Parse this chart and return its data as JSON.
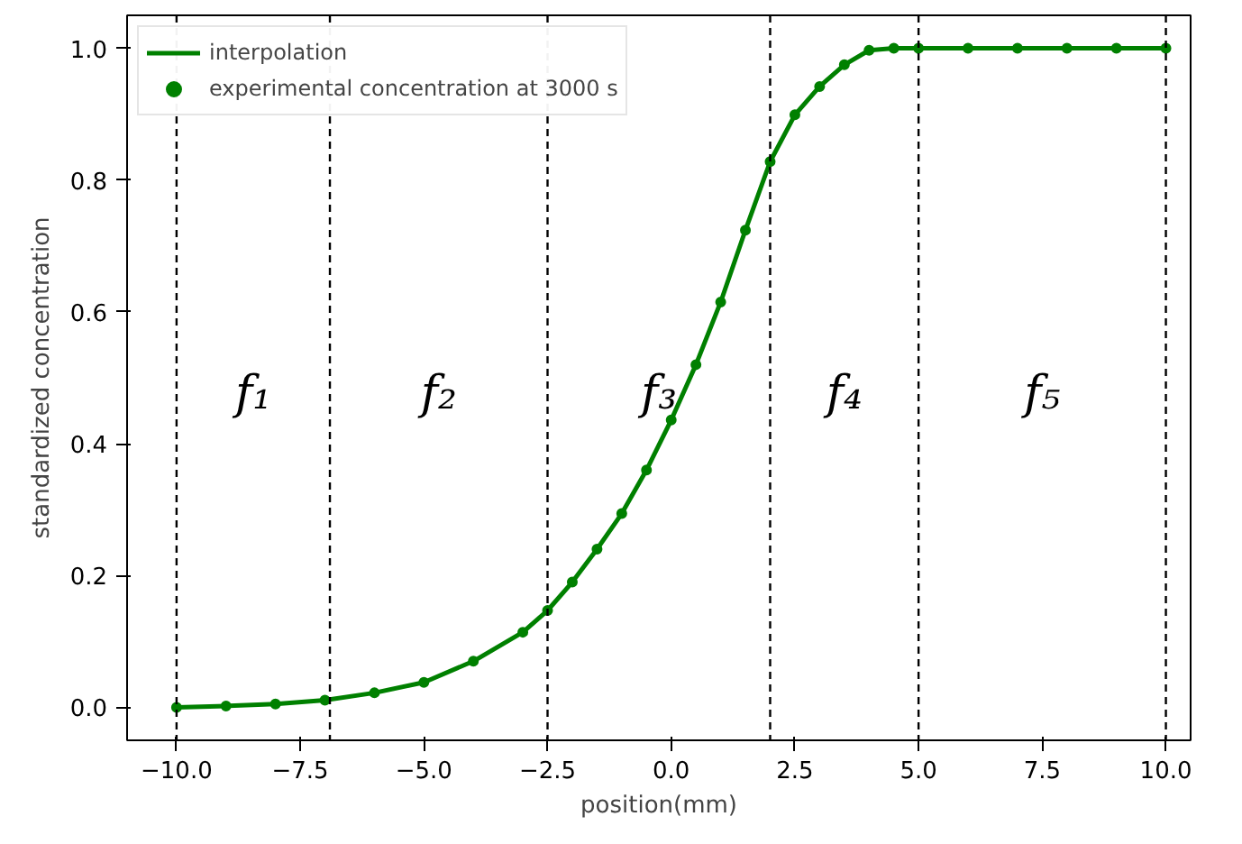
{
  "chart_data": {
    "type": "line",
    "xlabel": "position(mm)",
    "ylabel": "standardized concentration",
    "xlim": [
      -11,
      10.5
    ],
    "ylim": [
      -0.05,
      1.05
    ],
    "xticks": [
      {
        "value": -10,
        "label": "−10.0"
      },
      {
        "value": -7.5,
        "label": "−7.5"
      },
      {
        "value": -5,
        "label": "−5.0"
      },
      {
        "value": -2.5,
        "label": "−2.5"
      },
      {
        "value": 0,
        "label": "0.0"
      },
      {
        "value": 2.5,
        "label": "2.5"
      },
      {
        "value": 5,
        "label": "5.0"
      },
      {
        "value": 7.5,
        "label": "7.5"
      },
      {
        "value": 10,
        "label": "10.0"
      }
    ],
    "yticks": [
      {
        "value": 0,
        "label": "0.0"
      },
      {
        "value": 0.2,
        "label": "0.2"
      },
      {
        "value": 0.4,
        "label": "0.4"
      },
      {
        "value": 0.6,
        "label": "0.6"
      },
      {
        "value": 0.8,
        "label": "0.8"
      },
      {
        "value": 1,
        "label": "1.0"
      }
    ],
    "grid": false,
    "legend": "top left",
    "series": [
      {
        "name": "interpolation",
        "color": "#008000",
        "marker": "none",
        "x": [
          -10,
          -9,
          -8,
          -7,
          -6,
          -5,
          -4,
          -3,
          -2.5,
          -2,
          -1.5,
          -1,
          -0.5,
          0,
          0.5,
          1,
          1.5,
          2,
          2.5,
          3,
          3.5,
          4,
          4.5,
          5,
          6,
          7,
          8,
          9,
          10
        ],
        "values": [
          0.0,
          0.002,
          0.005,
          0.011,
          0.022,
          0.038,
          0.07,
          0.114,
          0.147,
          0.19,
          0.24,
          0.294,
          0.36,
          0.436,
          0.52,
          0.615,
          0.724,
          0.828,
          0.899,
          0.942,
          0.975,
          0.997,
          1.0,
          1.0,
          1.0,
          1.0,
          1.0,
          1.0,
          1.0
        ]
      },
      {
        "name": "experimental concentration at 3000 s",
        "type": "scatter",
        "color": "#008000",
        "marker": "circle",
        "x": [
          -10,
          -9,
          -8,
          -7,
          -6,
          -5,
          -4,
          -3,
          -2.5,
          -2,
          -1.5,
          -1,
          -0.5,
          0,
          0.5,
          1,
          1.5,
          2,
          2.5,
          3,
          3.5,
          4,
          4.5,
          5,
          6,
          7,
          8,
          9,
          10
        ],
        "values": [
          0.0,
          0.002,
          0.005,
          0.011,
          0.022,
          0.038,
          0.07,
          0.114,
          0.147,
          0.19,
          0.24,
          0.294,
          0.36,
          0.436,
          0.52,
          0.615,
          0.724,
          0.828,
          0.899,
          0.942,
          0.975,
          0.997,
          1.0,
          1.0,
          1.0,
          1.0,
          1.0,
          1.0,
          1.0
        ]
      }
    ],
    "ref_lines": [
      {
        "axis": "x",
        "value": -10,
        "color": "#000000",
        "line_style": "dashed"
      },
      {
        "axis": "x",
        "value": -6.9,
        "color": "#000000",
        "line_style": "dashed"
      },
      {
        "axis": "x",
        "value": -2.5,
        "color": "#000000",
        "line_style": "dashed"
      },
      {
        "axis": "x",
        "value": 2,
        "color": "#000000",
        "line_style": "dashed"
      },
      {
        "axis": "x",
        "value": 5,
        "color": "#000000",
        "line_style": "dashed"
      },
      {
        "axis": "x",
        "value": 10,
        "color": "#000000",
        "line_style": "dashed"
      }
    ],
    "annotations": [
      "f₁",
      "f₂",
      "f₃",
      "f₄",
      "f₅"
    ]
  }
}
